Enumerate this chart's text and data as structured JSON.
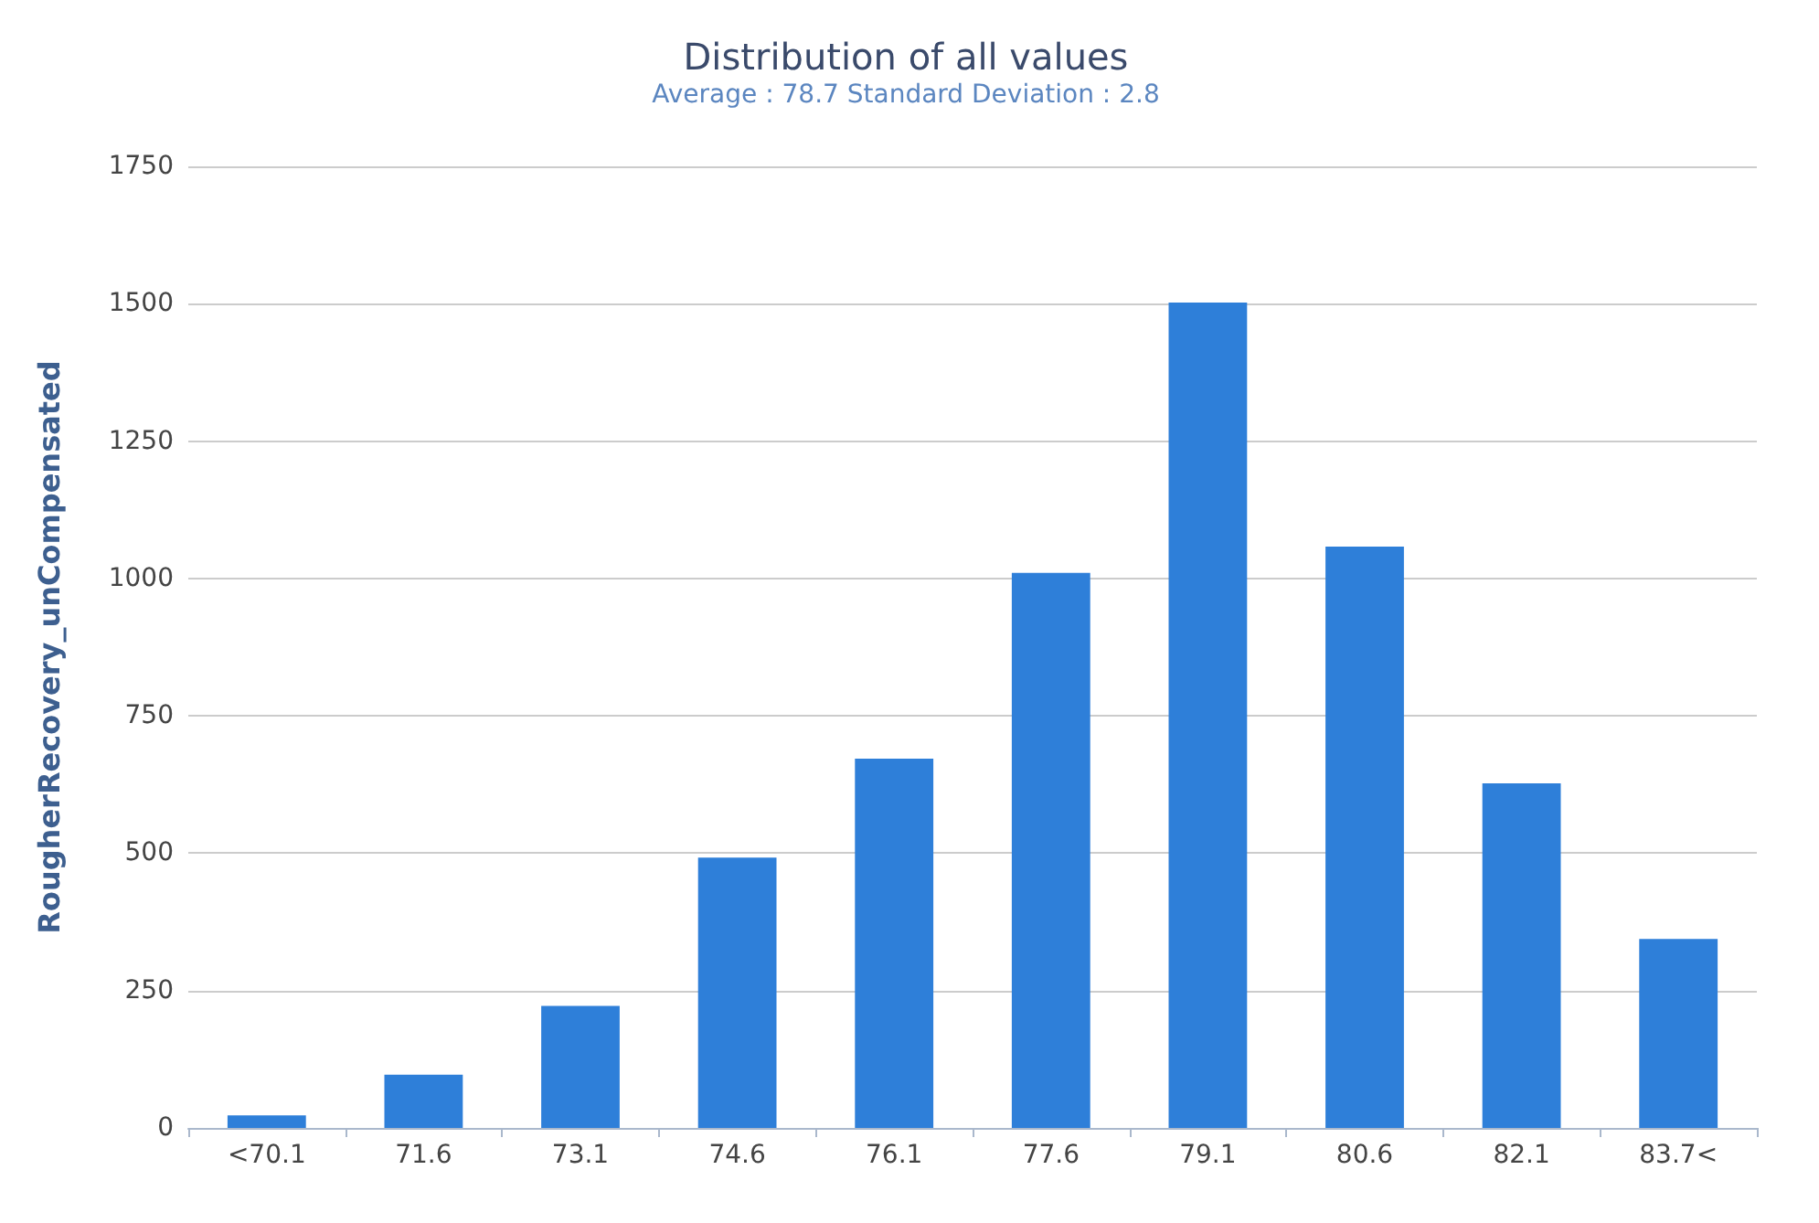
{
  "chart_data": {
    "type": "bar",
    "title": "Distribution of all values",
    "subtitle": "Average : 78.7 Standard Deviation : 2.8",
    "ylabel": "RougherRecovery_unCompensated",
    "categories": [
      "<70.1",
      "71.6",
      "73.1",
      "74.6",
      "76.1",
      "77.6",
      "79.1",
      "80.6",
      "82.1",
      "83.7<"
    ],
    "values": [
      23,
      97,
      222,
      492,
      672,
      1010,
      1502,
      1058,
      627,
      344
    ],
    "color": "#2e7fd9",
    "ylim": [
      0,
      1750
    ],
    "yticks": [
      0,
      250,
      500,
      750,
      1000,
      1250,
      1500,
      1750
    ],
    "grid": "y"
  }
}
